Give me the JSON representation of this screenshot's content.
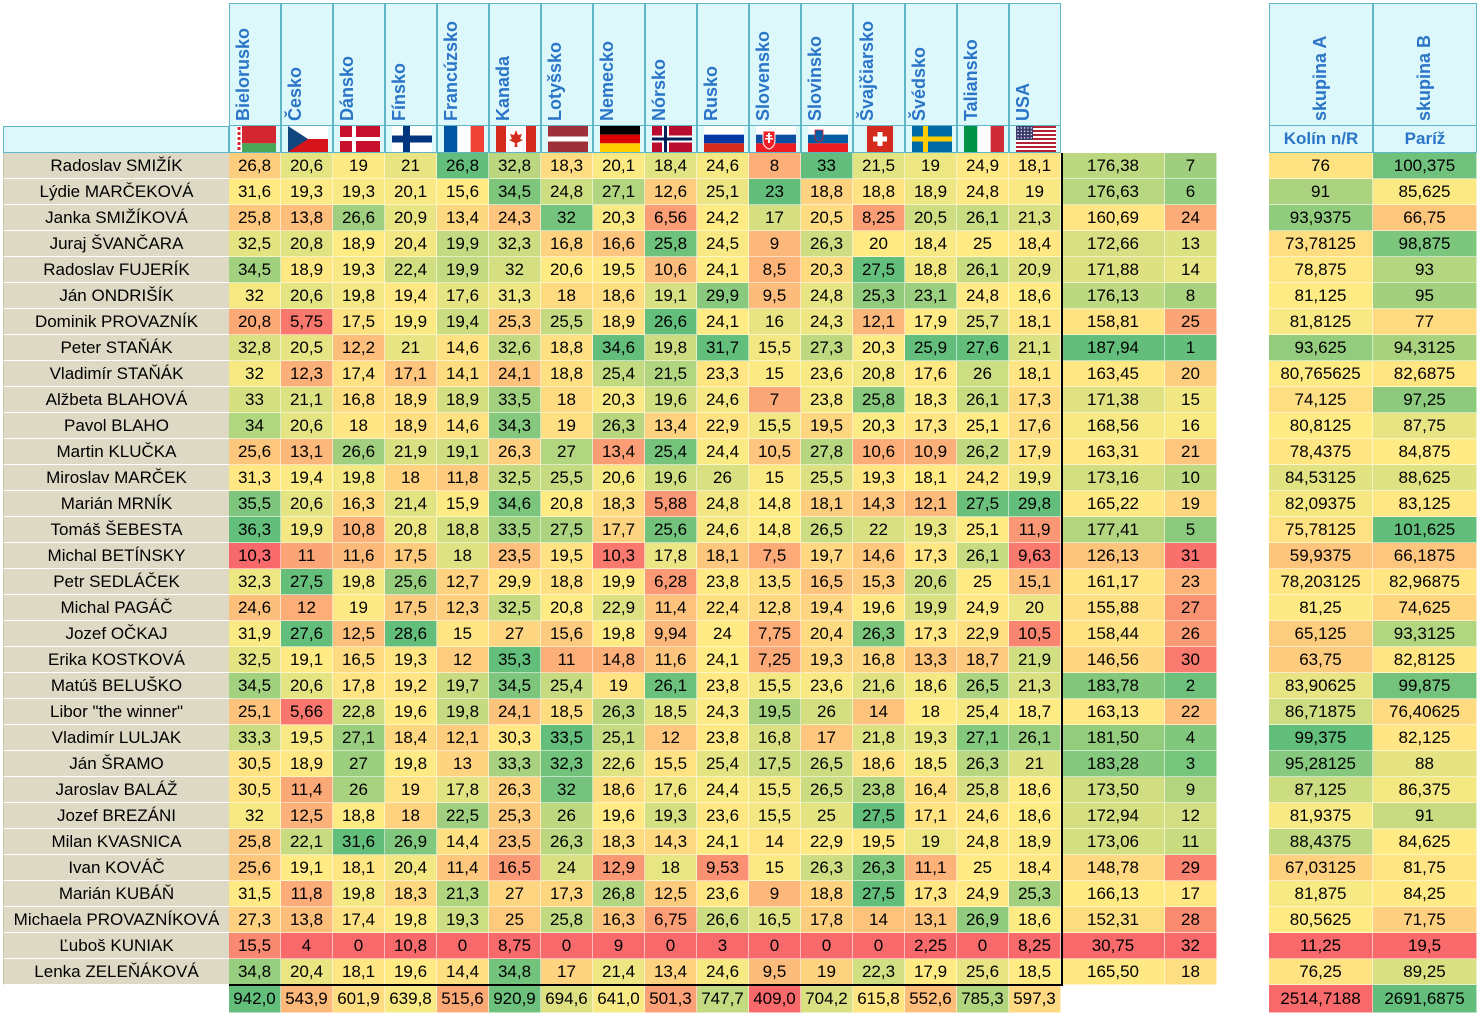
{
  "countries": [
    {
      "label": "Bielorusko",
      "flag": "belarus-flag"
    },
    {
      "label": "Česko",
      "flag": "czech-flag"
    },
    {
      "label": "Dánsko",
      "flag": "denmark-flag"
    },
    {
      "label": "Fínsko",
      "flag": "finland-flag"
    },
    {
      "label": "Francúzsko",
      "flag": "france-flag"
    },
    {
      "label": "Kanada",
      "flag": "canada-flag"
    },
    {
      "label": "Lotyšsko",
      "flag": "latvia-flag"
    },
    {
      "label": "Nemecko",
      "flag": "germany-flag"
    },
    {
      "label": "Nórsko",
      "flag": "norway-flag"
    },
    {
      "label": "Rusko",
      "flag": "russia-flag"
    },
    {
      "label": "Slovensko",
      "flag": "slovakia-flag"
    },
    {
      "label": "Slovinsko",
      "flag": "slovenia-flag"
    },
    {
      "label": "Švajčiarsko",
      "flag": "switzerland-flag"
    },
    {
      "label": "Švédsko",
      "flag": "sweden-flag"
    },
    {
      "label": "Taliansko",
      "flag": "italy-flag"
    },
    {
      "label": "USA",
      "flag": "usa-flag"
    }
  ],
  "groups": [
    {
      "label": "skupina A",
      "sublabel": "Kolín n/R"
    },
    {
      "label": "skupina B",
      "sublabel": "Paríž"
    }
  ],
  "rows": [
    {
      "name": "Radoslav SMIŽÍK",
      "values": [
        "26,8",
        "20,6",
        "19",
        "21",
        "26,8",
        "32,8",
        "18,3",
        "20,1",
        "18,4",
        "24,6",
        "8",
        "33",
        "21,5",
        "19",
        "24,9",
        "18,1"
      ],
      "total": "176,38",
      "rank": "7",
      "a": "76",
      "b": "100,375"
    },
    {
      "name": "Lýdie MARČEKOVÁ",
      "values": [
        "31,6",
        "19,3",
        "19,3",
        "20,1",
        "15,6",
        "34,5",
        "24,8",
        "27,1",
        "12,6",
        "25,1",
        "23",
        "18,8",
        "18,8",
        "18,9",
        "24,8",
        "19"
      ],
      "total": "176,63",
      "rank": "6",
      "a": "91",
      "b": "85,625"
    },
    {
      "name": "Janka SMIŽÍKOVÁ",
      "values": [
        "25,8",
        "13,8",
        "26,6",
        "20,9",
        "13,4",
        "24,3",
        "32",
        "20,3",
        "6,56",
        "24,2",
        "17",
        "20,5",
        "8,25",
        "20,5",
        "26,1",
        "21,3"
      ],
      "total": "160,69",
      "rank": "24",
      "a": "93,9375",
      "b": "66,75"
    },
    {
      "name": "Juraj ŠVANČARA",
      "values": [
        "32,5",
        "20,8",
        "18,9",
        "20,4",
        "19,9",
        "32,3",
        "16,8",
        "16,6",
        "25,8",
        "24,5",
        "9",
        "26,3",
        "20",
        "18,4",
        "25",
        "18,4"
      ],
      "total": "172,66",
      "rank": "13",
      "a": "73,78125",
      "b": "98,875"
    },
    {
      "name": "Radoslav FUJERÍK",
      "values": [
        "34,5",
        "18,9",
        "19,3",
        "22,4",
        "19,9",
        "32",
        "20,6",
        "19,5",
        "10,6",
        "24,1",
        "8,5",
        "20,3",
        "27,5",
        "18,8",
        "26,1",
        "20,9"
      ],
      "total": "171,88",
      "rank": "14",
      "a": "78,875",
      "b": "93"
    },
    {
      "name": "Ján ONDRIŠÍK",
      "values": [
        "32",
        "20,6",
        "19,8",
        "19,4",
        "17,6",
        "31,3",
        "18",
        "18,6",
        "19,1",
        "29,9",
        "9,5",
        "24,8",
        "25,3",
        "23,1",
        "24,8",
        "18,6"
      ],
      "total": "176,13",
      "rank": "8",
      "a": "81,125",
      "b": "95"
    },
    {
      "name": "Dominik PROVAZNÍK",
      "values": [
        "20,8",
        "5,75",
        "17,5",
        "19,9",
        "19,4",
        "25,3",
        "25,5",
        "18,9",
        "26,6",
        "24,1",
        "16",
        "24,3",
        "12,1",
        "17,9",
        "25,7",
        "18,1"
      ],
      "total": "158,81",
      "rank": "25",
      "a": "81,8125",
      "b": "77"
    },
    {
      "name": "Peter STAŇÁK",
      "values": [
        "32,8",
        "20,5",
        "12,2",
        "21",
        "14,6",
        "32,6",
        "18,8",
        "34,6",
        "19,8",
        "31,7",
        "15,5",
        "27,3",
        "20,3",
        "25,9",
        "27,6",
        "21,1"
      ],
      "total": "187,94",
      "rank": "1",
      "a": "93,625",
      "b": "94,3125"
    },
    {
      "name": "Vladimír STAŇÁK",
      "values": [
        "32",
        "12,3",
        "17,4",
        "17,1",
        "14,1",
        "24,1",
        "18,8",
        "25,4",
        "21,5",
        "23,3",
        "15",
        "23,6",
        "20,8",
        "17,6",
        "26",
        "18,1"
      ],
      "total": "163,45",
      "rank": "20",
      "a": "80,765625",
      "b": "82,6875"
    },
    {
      "name": "Alžbeta BLAHOVÁ",
      "values": [
        "33",
        "21,1",
        "16,8",
        "18,9",
        "18,9",
        "33,5",
        "18",
        "20,3",
        "19,6",
        "24,6",
        "7",
        "23,8",
        "25,8",
        "18,3",
        "26,1",
        "17,3"
      ],
      "total": "171,38",
      "rank": "15",
      "a": "74,125",
      "b": "97,25"
    },
    {
      "name": "Pavol BLAHO",
      "values": [
        "34",
        "20,6",
        "18",
        "18,9",
        "14,6",
        "34,3",
        "19",
        "26,3",
        "13,4",
        "22,9",
        "15,5",
        "19,5",
        "20,3",
        "17,3",
        "25,1",
        "17,6"
      ],
      "total": "168,56",
      "rank": "16",
      "a": "80,8125",
      "b": "87,75"
    },
    {
      "name": "Martin KLUČKA",
      "values": [
        "25,6",
        "13,1",
        "26,6",
        "21,9",
        "19,1",
        "26,3",
        "27",
        "13,4",
        "25,4",
        "24,4",
        "10,5",
        "27,8",
        "10,6",
        "10,9",
        "26,2",
        "17,9"
      ],
      "total": "163,31",
      "rank": "21",
      "a": "78,4375",
      "b": "84,875"
    },
    {
      "name": "Miroslav MARČEK",
      "values": [
        "31,3",
        "19,4",
        "19,8",
        "18",
        "11,8",
        "32,5",
        "25,5",
        "20,6",
        "19,6",
        "26",
        "15",
        "25,5",
        "19,3",
        "18,1",
        "24,2",
        "19,9"
      ],
      "total": "173,16",
      "rank": "10",
      "a": "84,53125",
      "b": "88,625"
    },
    {
      "name": "Marián MRNÍK",
      "values": [
        "35,5",
        "20,6",
        "16,3",
        "21,4",
        "15,9",
        "34,6",
        "20,8",
        "18,3",
        "5,88",
        "24,8",
        "14,8",
        "18,1",
        "14,3",
        "12,1",
        "27,5",
        "29,8"
      ],
      "total": "165,22",
      "rank": "19",
      "a": "82,09375",
      "b": "83,125"
    },
    {
      "name": "Tomáš ŠEBESTA",
      "values": [
        "36,3",
        "19,9",
        "10,8",
        "20,8",
        "18,8",
        "33,5",
        "27,5",
        "17,7",
        "25,6",
        "24,6",
        "14,8",
        "26,5",
        "22",
        "19,3",
        "25,1",
        "11,9"
      ],
      "total": "177,41",
      "rank": "5",
      "a": "75,78125",
      "b": "101,625"
    },
    {
      "name": "Michal BETÍNSKY",
      "values": [
        "10,3",
        "11",
        "11,6",
        "17,5",
        "18",
        "23,5",
        "19,5",
        "10,3",
        "17,8",
        "18,1",
        "7,5",
        "19,7",
        "14,6",
        "17,3",
        "26,1",
        "9,63"
      ],
      "total": "126,13",
      "rank": "31",
      "a": "59,9375",
      "b": "66,1875"
    },
    {
      "name": "Petr SEDLÁČEK",
      "values": [
        "32,3",
        "27,5",
        "19,8",
        "25,6",
        "12,7",
        "29,9",
        "18,8",
        "19,9",
        "6,28",
        "23,8",
        "13,5",
        "16,5",
        "15,3",
        "20,6",
        "25",
        "15,1"
      ],
      "total": "161,17",
      "rank": "23",
      "a": "78,203125",
      "b": "82,96875"
    },
    {
      "name": "Michal PAGÁČ",
      "values": [
        "24,6",
        "12",
        "19",
        "17,5",
        "12,3",
        "32,5",
        "20,8",
        "22,9",
        "11,4",
        "22,4",
        "12,8",
        "19,4",
        "19,6",
        "19,9",
        "24,9",
        "20"
      ],
      "total": "155,88",
      "rank": "27",
      "a": "81,25",
      "b": "74,625"
    },
    {
      "name": "Jozef OČKAJ",
      "values": [
        "31,9",
        "27,6",
        "12,5",
        "28,6",
        "15",
        "27",
        "15,6",
        "19,8",
        "9,94",
        "24",
        "7,75",
        "20,4",
        "26,3",
        "17,3",
        "22,9",
        "10,5"
      ],
      "total": "158,44",
      "rank": "26",
      "a": "65,125",
      "b": "93,3125"
    },
    {
      "name": "Erika KOSTKOVÁ",
      "values": [
        "32,5",
        "19,1",
        "16,5",
        "19,3",
        "12",
        "35,3",
        "11",
        "14,8",
        "11,6",
        "24,1",
        "7,25",
        "19,3",
        "16,8",
        "13,3",
        "18,7",
        "21,9"
      ],
      "total": "146,56",
      "rank": "30",
      "a": "63,75",
      "b": "82,8125"
    },
    {
      "name": "Matúš BELUŠKO",
      "values": [
        "34,5",
        "20,6",
        "17,8",
        "19,2",
        "19,7",
        "34,5",
        "25,4",
        "19",
        "26,1",
        "23,8",
        "15,5",
        "23,6",
        "21,6",
        "18,6",
        "26,5",
        "21,3"
      ],
      "total": "183,78",
      "rank": "2",
      "a": "83,90625",
      "b": "99,875"
    },
    {
      "name": "Libor \"the winner\"",
      "values": [
        "25,1",
        "5,66",
        "22,8",
        "19,6",
        "19,8",
        "24,1",
        "18,5",
        "26,3",
        "18,5",
        "24,3",
        "19,5",
        "26",
        "14",
        "18",
        "25,4",
        "18,7"
      ],
      "total": "163,13",
      "rank": "22",
      "a": "86,71875",
      "b": "76,40625"
    },
    {
      "name": "Vladimír LULJAK",
      "values": [
        "33,3",
        "19,5",
        "27,1",
        "18,4",
        "12,1",
        "30,3",
        "33,5",
        "25,1",
        "12",
        "23,8",
        "16,8",
        "17",
        "21,8",
        "19,3",
        "27,1",
        "26,1"
      ],
      "total": "181,50",
      "rank": "4",
      "a": "99,375",
      "b": "82,125"
    },
    {
      "name": "Ján ŠRAMO",
      "values": [
        "30,5",
        "18,9",
        "27",
        "19,8",
        "13",
        "33,3",
        "32,3",
        "22,6",
        "15,5",
        "25,4",
        "17,5",
        "26,5",
        "18,6",
        "18,5",
        "26,3",
        "21"
      ],
      "total": "183,28",
      "rank": "3",
      "a": "95,28125",
      "b": "88"
    },
    {
      "name": "Jaroslav BALÁŽ",
      "values": [
        "30,5",
        "11,4",
        "26",
        "19",
        "17,8",
        "26,3",
        "32",
        "18,6",
        "17,6",
        "24,4",
        "15,5",
        "26,5",
        "23,8",
        "16,4",
        "25,8",
        "18,6"
      ],
      "total": "173,50",
      "rank": "9",
      "a": "87,125",
      "b": "86,375"
    },
    {
      "name": "Jozef BREZÁNI",
      "values": [
        "32",
        "12,5",
        "18,8",
        "18",
        "22,5",
        "25,3",
        "26",
        "19,6",
        "19,3",
        "23,6",
        "15,5",
        "25",
        "27,5",
        "17,1",
        "24,6",
        "18,6"
      ],
      "total": "172,94",
      "rank": "12",
      "a": "81,9375",
      "b": "91"
    },
    {
      "name": "Milan KVASNICA",
      "values": [
        "25,8",
        "22,1",
        "31,6",
        "26,9",
        "14,4",
        "23,5",
        "26,3",
        "18,3",
        "14,3",
        "24,1",
        "14",
        "22,9",
        "19,5",
        "19",
        "24,8",
        "18,9"
      ],
      "total": "173,06",
      "rank": "11",
      "a": "88,4375",
      "b": "84,625"
    },
    {
      "name": "Ivan KOVÁČ",
      "values": [
        "25,6",
        "19,1",
        "18,1",
        "20,4",
        "11,4",
        "16,5",
        "24",
        "12,9",
        "18",
        "9,53",
        "15",
        "26,3",
        "26,3",
        "11,1",
        "25",
        "18,4"
      ],
      "total": "148,78",
      "rank": "29",
      "a": "67,03125",
      "b": "81,75"
    },
    {
      "name": "Marián KUBÁŇ",
      "values": [
        "31,5",
        "11,8",
        "19,8",
        "18,3",
        "21,3",
        "27",
        "17,3",
        "26,8",
        "12,5",
        "23,6",
        "9",
        "18,8",
        "27,5",
        "17,3",
        "24,9",
        "25,3"
      ],
      "total": "166,13",
      "rank": "17",
      "a": "81,875",
      "b": "84,25"
    },
    {
      "name": "Michaela PROVAZNÍKOVÁ",
      "values": [
        "27,3",
        "13,8",
        "17,4",
        "19,8",
        "19,3",
        "25",
        "25,8",
        "16,3",
        "6,75",
        "26,6",
        "16,5",
        "17,8",
        "14",
        "13,1",
        "26,9",
        "18,6"
      ],
      "total": "152,31",
      "rank": "28",
      "a": "80,5625",
      "b": "71,75"
    },
    {
      "name": "Ľuboš KUNIAK",
      "values": [
        "15,5",
        "4",
        "0",
        "10,8",
        "0",
        "8,75",
        "0",
        "9",
        "0",
        "3",
        "0",
        "0",
        "0",
        "2,25",
        "0",
        "8,25"
      ],
      "total": "30,75",
      "rank": "32",
      "a": "11,25",
      "b": "19,5"
    },
    {
      "name": "Lenka ZELEŇÁKOVÁ",
      "values": [
        "34,8",
        "20,4",
        "18,1",
        "19,6",
        "14,4",
        "34,8",
        "17",
        "21,4",
        "13,4",
        "24,6",
        "9,5",
        "19",
        "22,3",
        "17,9",
        "25,6",
        "18,5"
      ],
      "total": "165,50",
      "rank": "18",
      "a": "76,25",
      "b": "89,25"
    }
  ],
  "column_totals": [
    "942,0",
    "543,9",
    "601,9",
    "639,8",
    "515,6",
    "920,9",
    "694,6",
    "641,0",
    "501,3",
    "747,7",
    "409,0",
    "704,2",
    "615,8",
    "552,6",
    "785,3",
    "597,3"
  ],
  "group_totals": {
    "a": "2514,7188",
    "b": "2691,6875"
  }
}
